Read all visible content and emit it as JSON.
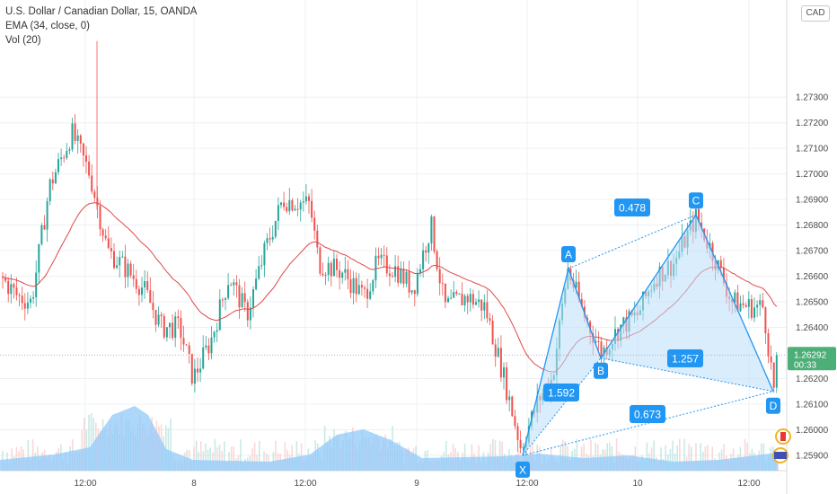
{
  "legend": {
    "title": "U.S. Dollar / Canadian Dollar, 15, OANDA",
    "ema": "EMA (34, close, 0)",
    "vol": "Vol (20)"
  },
  "currency_badge": "CAD",
  "last_price": "1.26292",
  "countdown": "00:33",
  "colors": {
    "up": "#26a69a",
    "down": "#ef5350",
    "ema": "#e04848",
    "pattern": "#2196f3",
    "pattern_fill": "#bbdefb",
    "volume_area": "#90caf9",
    "last_price_badge": "#4caf78"
  },
  "chart_data": {
    "type": "candlestick",
    "symbol": "USDCAD",
    "timeframe": "15",
    "ylim": [
      1.2584,
      1.2768
    ],
    "y_ticks": [
      "1.27300",
      "1.27200",
      "1.27100",
      "1.27000",
      "1.26900",
      "1.26800",
      "1.26700",
      "1.26600",
      "1.26500",
      "1.26400",
      "1.26200",
      "1.26100",
      "1.26000",
      "1.25900"
    ],
    "x_ticks": [
      "12:00",
      "8",
      "12:00",
      "9",
      "12:00",
      "10",
      "12:00"
    ],
    "ohlc_approx": [
      [
        1.266,
        1.2668,
        1.265,
        1.2664
      ],
      [
        1.2664,
        1.2672,
        1.2655,
        1.2658
      ],
      [
        1.2658,
        1.2662,
        1.264,
        1.2648
      ],
      [
        1.2648,
        1.2668,
        1.2645,
        1.266
      ],
      [
        1.266,
        1.268,
        1.2656,
        1.2675
      ],
      [
        1.2675,
        1.2705,
        1.267,
        1.27
      ],
      [
        1.27,
        1.2722,
        1.2695,
        1.2716
      ],
      [
        1.2716,
        1.2724,
        1.269,
        1.2698
      ],
      [
        1.2698,
        1.273,
        1.2692,
        1.2704
      ],
      [
        1.2704,
        1.2712,
        1.266,
        1.2668
      ],
      [
        1.2668,
        1.269,
        1.2645,
        1.268
      ],
      [
        1.268,
        1.2686,
        1.265,
        1.2655
      ],
      [
        1.2655,
        1.267,
        1.2648,
        1.2662
      ],
      [
        1.2662,
        1.2668,
        1.2628,
        1.2632
      ],
      [
        1.2632,
        1.265,
        1.262,
        1.2645
      ],
      [
        1.2645,
        1.2662,
        1.264,
        1.2658
      ],
      [
        1.2658,
        1.268,
        1.2652,
        1.2676
      ],
      [
        1.2676,
        1.27,
        1.267,
        1.2695
      ],
      [
        1.2695,
        1.27,
        1.2675,
        1.268
      ],
      [
        1.268,
        1.2688,
        1.2655,
        1.266
      ],
      [
        1.266,
        1.2666,
        1.2638,
        1.2645
      ],
      [
        1.2645,
        1.2672,
        1.264,
        1.2668
      ],
      [
        1.2668,
        1.2678,
        1.265,
        1.2656
      ],
      [
        1.2656,
        1.2662,
        1.2644,
        1.265
      ],
      [
        1.265,
        1.2662,
        1.264,
        1.2645
      ],
      [
        1.2645,
        1.266,
        1.2638,
        1.2655
      ],
      [
        1.2655,
        1.2675,
        1.265,
        1.267
      ],
      [
        1.267,
        1.2676,
        1.2655,
        1.266
      ],
      [
        1.266,
        1.2664,
        1.264,
        1.2648
      ],
      [
        1.2648,
        1.2652,
        1.2625,
        1.263
      ],
      [
        1.263,
        1.2645,
        1.2612,
        1.2618
      ],
      [
        1.2618,
        1.2625,
        1.2595,
        1.26
      ],
      [
        1.26,
        1.2618,
        1.2592,
        1.2612
      ],
      [
        1.2612,
        1.264,
        1.2608,
        1.2635
      ],
      [
        1.2635,
        1.266,
        1.263,
        1.2656
      ],
      [
        1.2656,
        1.2662,
        1.264,
        1.2645
      ],
      [
        1.2645,
        1.265,
        1.2628,
        1.2634
      ],
      [
        1.2634,
        1.2648,
        1.263,
        1.2642
      ],
      [
        1.2642,
        1.2655,
        1.2636,
        1.265
      ],
      [
        1.265,
        1.2665,
        1.2645,
        1.266
      ],
      [
        1.266,
        1.2672,
        1.2654,
        1.2668
      ],
      [
        1.2668,
        1.2684,
        1.2662,
        1.2678
      ],
      [
        1.2678,
        1.2682,
        1.266,
        1.2664
      ],
      [
        1.2664,
        1.2668,
        1.2645,
        1.265
      ],
      [
        1.265,
        1.2656,
        1.264,
        1.2644
      ],
      [
        1.2644,
        1.265,
        1.2615,
        1.262
      ],
      [
        1.262,
        1.2634,
        1.2616,
        1.2629
      ]
    ],
    "harmonic_pattern": {
      "points": [
        "X",
        "A",
        "B",
        "C",
        "D"
      ],
      "prices": [
        1.259,
        1.2663,
        1.2628,
        1.2684,
        1.2615
      ],
      "ratios": [
        "1.592",
        "0.478",
        "1.257",
        "0.673"
      ]
    },
    "indicators": [
      "EMA (34, close, 0)",
      "Vol (20)"
    ]
  }
}
